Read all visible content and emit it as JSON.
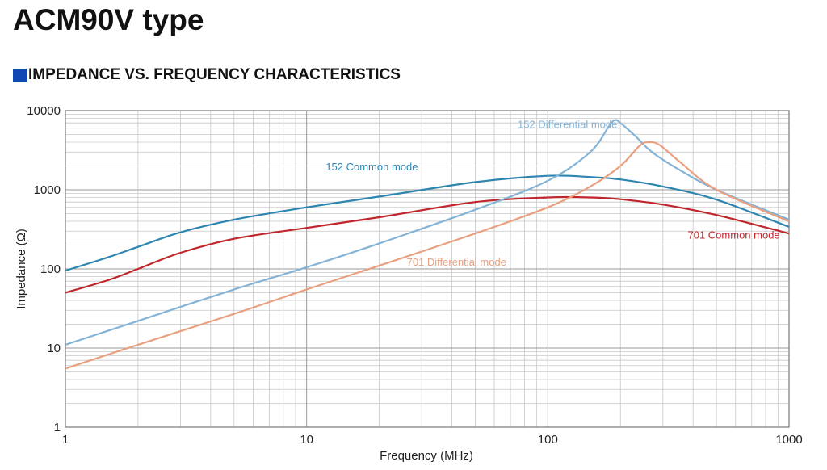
{
  "page": {
    "title": "ACM90V type",
    "section": "IMPEDANCE VS. FREQUENCY CHARACTERISTICS",
    "section_marker_color": "#1146b5"
  },
  "chart_data": {
    "type": "line",
    "title": "",
    "xlabel": "Frequency (MHz)",
    "ylabel": "Impedance (Ω)",
    "xscale": "log",
    "yscale": "log",
    "xlim": [
      1,
      1000
    ],
    "ylim": [
      1,
      10000
    ],
    "grid": true,
    "x_ticks": [
      {
        "value": 1,
        "label": "1"
      },
      {
        "value": 10,
        "label": "10"
      },
      {
        "value": 100,
        "label": "100"
      },
      {
        "value": 1000,
        "label": "1000"
      }
    ],
    "y_ticks": [
      {
        "value": 1,
        "label": "1"
      },
      {
        "value": 10,
        "label": "10"
      },
      {
        "value": 100,
        "label": "100"
      },
      {
        "value": 1000,
        "label": "1000"
      },
      {
        "value": 10000,
        "label": "10000"
      }
    ],
    "series": [
      {
        "name": "152 Common mode",
        "color": "#2e86b0",
        "points": [
          [
            1,
            95
          ],
          [
            1.5,
            140
          ],
          [
            2,
            190
          ],
          [
            3,
            290
          ],
          [
            5,
            420
          ],
          [
            10,
            600
          ],
          [
            20,
            820
          ],
          [
            50,
            1250
          ],
          [
            100,
            1500
          ],
          [
            150,
            1450
          ],
          [
            200,
            1350
          ],
          [
            300,
            1100
          ],
          [
            500,
            750
          ],
          [
            1000,
            340
          ]
        ]
      },
      {
        "name": "701 Common mode",
        "color": "#c0272d",
        "points": [
          [
            1,
            50
          ],
          [
            1.5,
            72
          ],
          [
            2,
            100
          ],
          [
            3,
            160
          ],
          [
            5,
            240
          ],
          [
            10,
            330
          ],
          [
            20,
            450
          ],
          [
            50,
            700
          ],
          [
            100,
            800
          ],
          [
            150,
            800
          ],
          [
            200,
            760
          ],
          [
            300,
            650
          ],
          [
            500,
            480
          ],
          [
            1000,
            280
          ]
        ]
      },
      {
        "name": "152 Differential mode",
        "color": "#85b3d6",
        "points": [
          [
            1,
            11
          ],
          [
            2,
            22
          ],
          [
            5,
            55
          ],
          [
            10,
            105
          ],
          [
            20,
            210
          ],
          [
            50,
            560
          ],
          [
            100,
            1300
          ],
          [
            150,
            3000
          ],
          [
            180,
            6500
          ],
          [
            190,
            7600
          ],
          [
            200,
            7000
          ],
          [
            230,
            4800
          ],
          [
            270,
            3000
          ],
          [
            350,
            1800
          ],
          [
            500,
            1000
          ],
          [
            1000,
            420
          ]
        ]
      },
      {
        "name": "701 Differential mode",
        "color": "#e8a080",
        "points": [
          [
            1,
            5.5
          ],
          [
            2,
            11
          ],
          [
            5,
            27
          ],
          [
            10,
            55
          ],
          [
            20,
            110
          ],
          [
            50,
            280
          ],
          [
            100,
            600
          ],
          [
            150,
            1100
          ],
          [
            200,
            2000
          ],
          [
            240,
            3600
          ],
          [
            260,
            4000
          ],
          [
            290,
            3700
          ],
          [
            350,
            2300
          ],
          [
            500,
            1000
          ],
          [
            1000,
            400
          ]
        ]
      }
    ],
    "annotations": [
      {
        "text": "152 Differential mode",
        "series": 2,
        "x": 75,
        "y": 6000
      },
      {
        "text": "152 Common mode",
        "series": 0,
        "x": 12,
        "y": 1750
      },
      {
        "text": "701 Common mode",
        "series": 1,
        "x": 380,
        "y": 240
      },
      {
        "text": "701 Differential mode",
        "series": 3,
        "x": 26,
        "y": 110
      }
    ]
  }
}
